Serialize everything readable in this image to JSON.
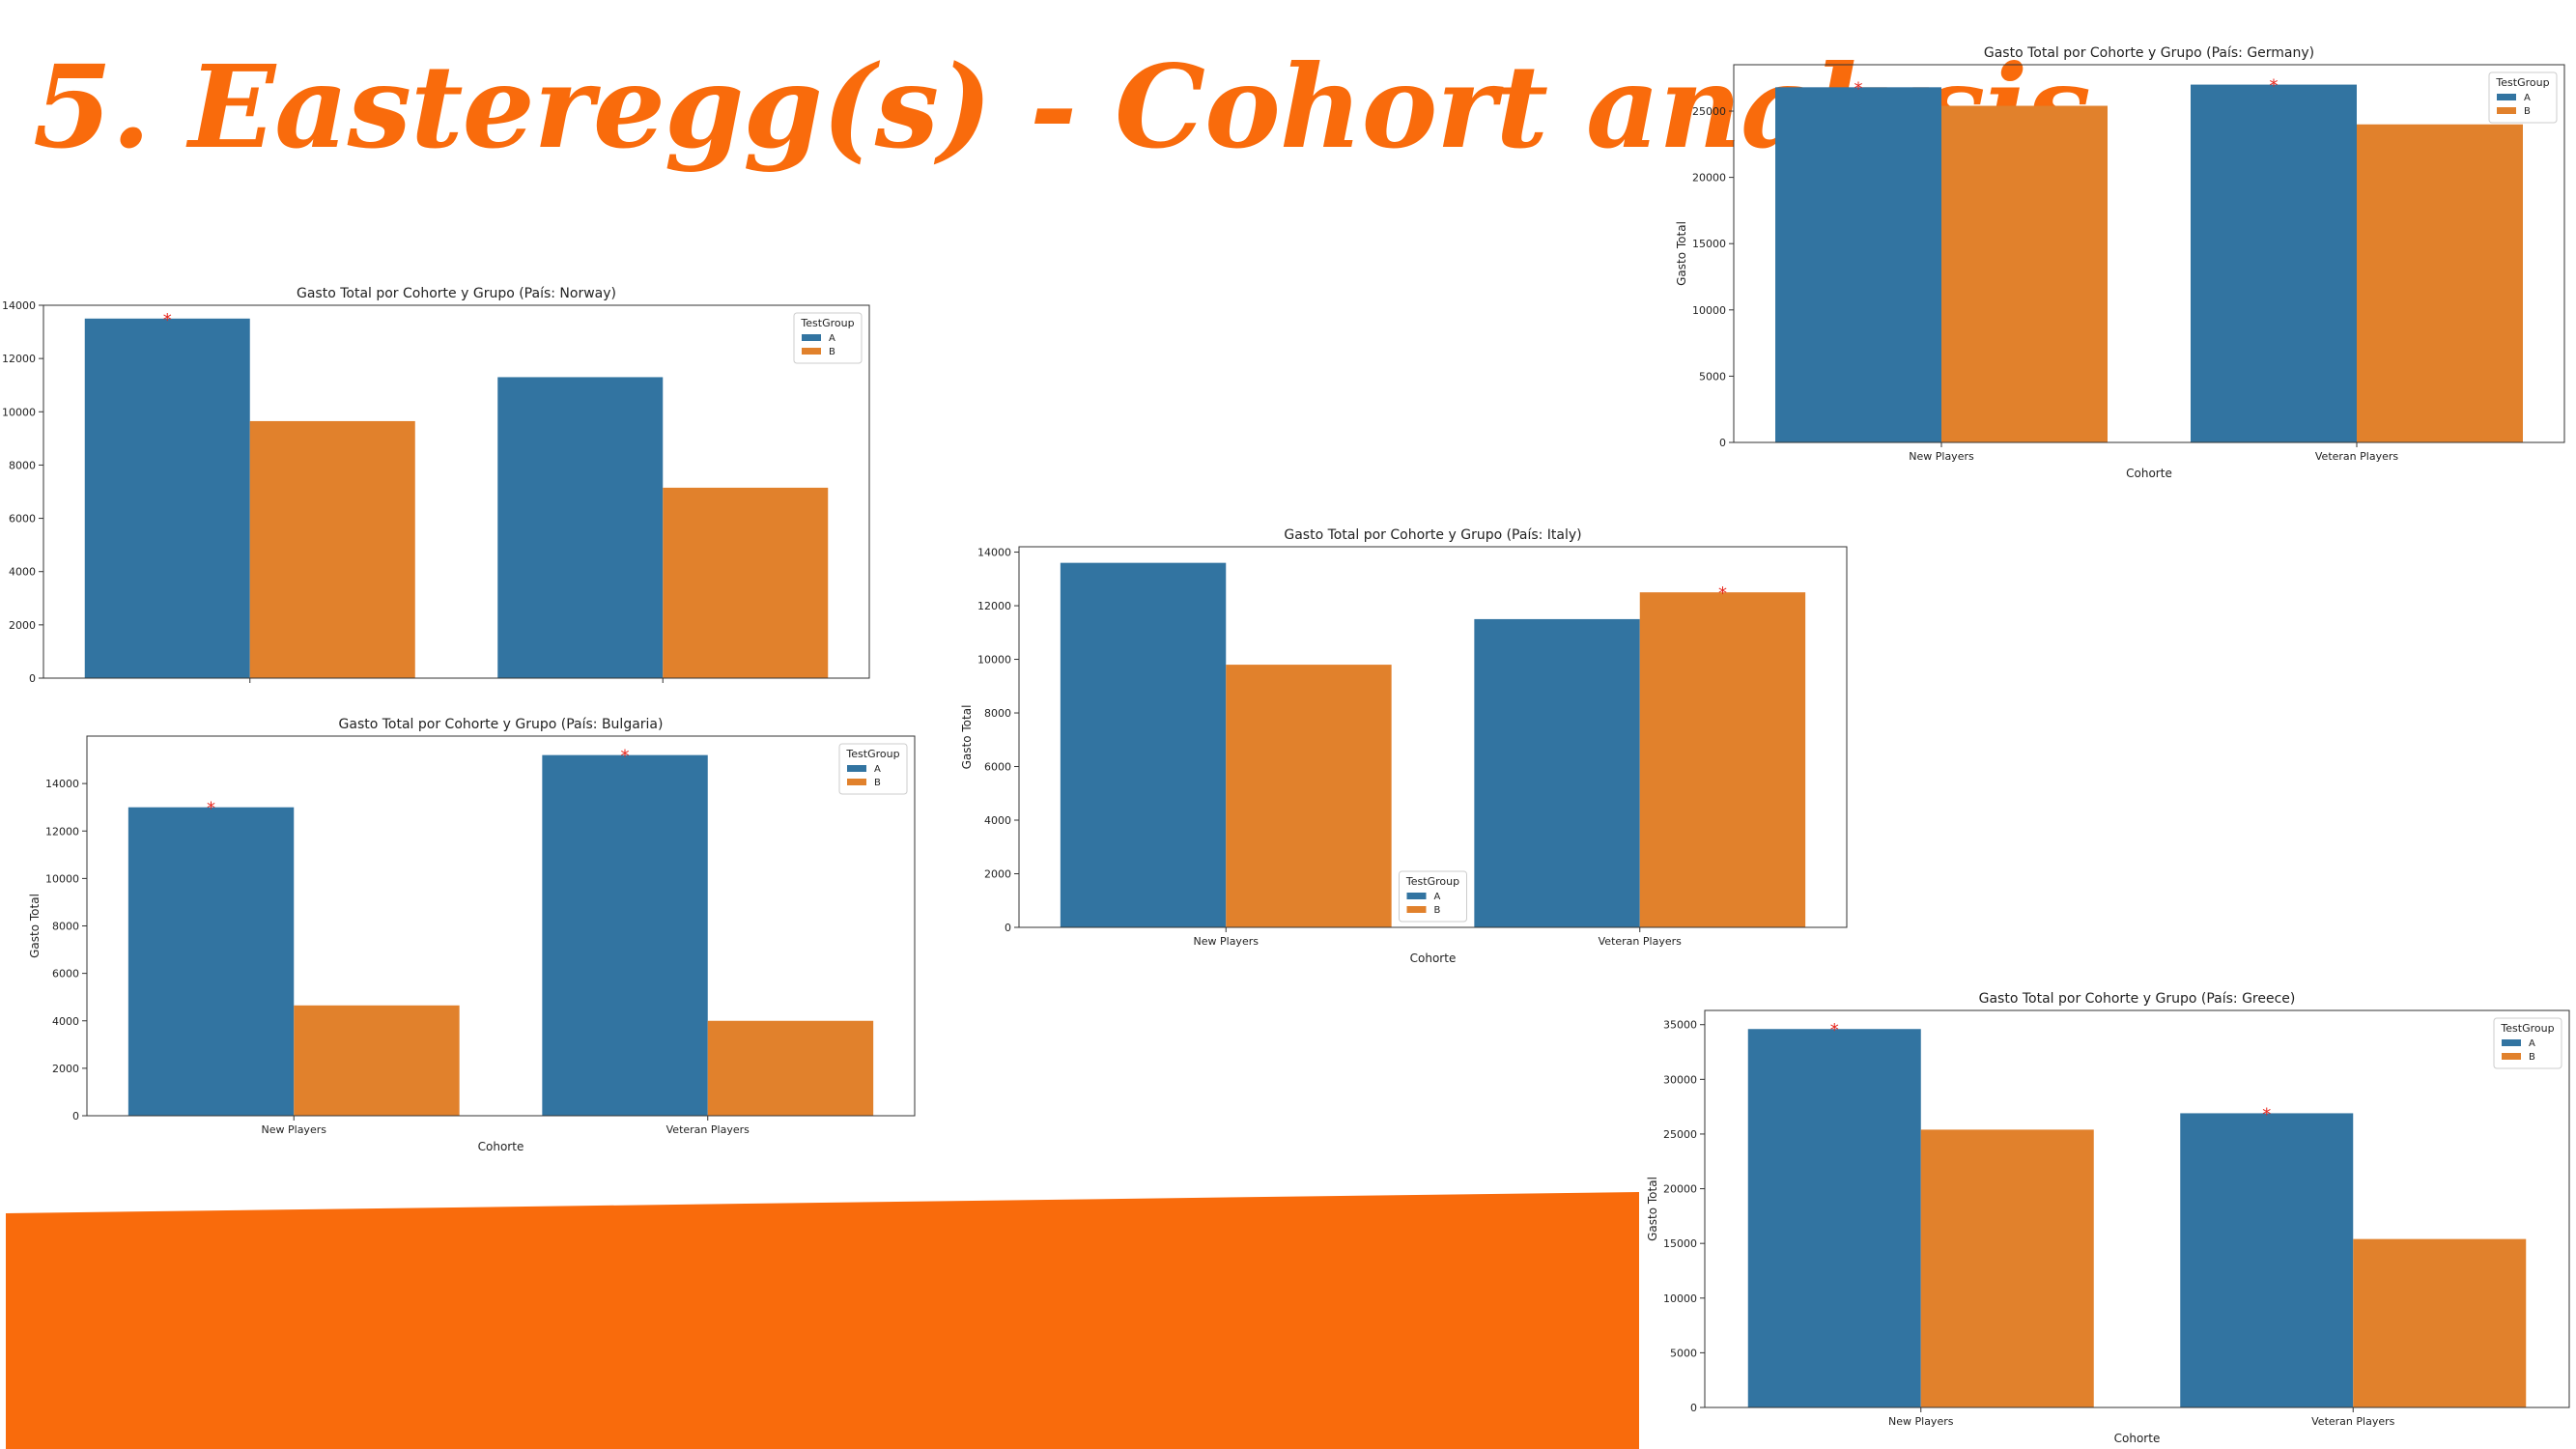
{
  "slide": {
    "title": "5. Easteregg(s) - Cohort analysis",
    "accent_color": "#f96b0c"
  },
  "colors": {
    "A": "#3274a1",
    "B": "#e1812c",
    "significance": "#e8261c"
  },
  "chart_data": [
    {
      "id": "norway",
      "type": "bar",
      "title": "Gasto Total por Cohorte y Grupo (País: Norway)",
      "xlabel": "",
      "ylabel": "",
      "categories": [
        "",
        ""
      ],
      "series": [
        {
          "name": "A",
          "values": [
            13500,
            11300
          ]
        },
        {
          "name": "B",
          "values": [
            9650,
            7150
          ]
        }
      ],
      "ylim": [
        0,
        14000
      ],
      "yticks": [
        0,
        2000,
        4000,
        6000,
        8000,
        10000,
        12000,
        14000
      ],
      "significance": [
        {
          "series": "A",
          "category": 0
        }
      ],
      "legend": {
        "title": "TestGroup",
        "entries": [
          "A",
          "B"
        ],
        "placement": "top-right"
      },
      "grid": false
    },
    {
      "id": "bulgaria",
      "type": "bar",
      "title": "Gasto Total por Cohorte y Grupo (País: Bulgaria)",
      "xlabel": "Cohorte",
      "ylabel": "Gasto Total",
      "categories": [
        "New Players",
        "Veteran Players"
      ],
      "series": [
        {
          "name": "A",
          "values": [
            13000,
            15200
          ]
        },
        {
          "name": "B",
          "values": [
            4650,
            4000
          ]
        }
      ],
      "ylim": [
        0,
        16000
      ],
      "yticks": [
        0,
        2000,
        4000,
        6000,
        8000,
        10000,
        12000,
        14000
      ],
      "significance": [
        {
          "series": "A",
          "category": 0
        },
        {
          "series": "A",
          "category": 1
        }
      ],
      "legend": {
        "title": "TestGroup",
        "entries": [
          "A",
          "B"
        ],
        "placement": "top-right"
      },
      "grid": false
    },
    {
      "id": "italy",
      "type": "bar",
      "title": "Gasto Total por Cohorte y Grupo (País: Italy)",
      "xlabel": "Cohorte",
      "ylabel": "Gasto Total",
      "categories": [
        "New Players",
        "Veteran Players"
      ],
      "series": [
        {
          "name": "A",
          "values": [
            13600,
            11500
          ]
        },
        {
          "name": "B",
          "values": [
            9800,
            12500
          ]
        }
      ],
      "ylim": [
        0,
        14200
      ],
      "yticks": [
        0,
        2000,
        4000,
        6000,
        8000,
        10000,
        12000,
        14000
      ],
      "significance": [
        {
          "series": "B",
          "category": 1
        }
      ],
      "legend": {
        "title": "TestGroup",
        "entries": [
          "A",
          "B"
        ],
        "placement": "lower-center"
      },
      "grid": false
    },
    {
      "id": "germany",
      "type": "bar",
      "title": "Gasto Total por Cohorte y Grupo (País: Germany)",
      "xlabel": "Cohorte",
      "ylabel": "Gasto Total",
      "categories": [
        "New Players",
        "Veteran Players"
      ],
      "series": [
        {
          "name": "A",
          "values": [
            26800,
            27000
          ]
        },
        {
          "name": "B",
          "values": [
            25400,
            24000
          ]
        }
      ],
      "ylim": [
        0,
        28500
      ],
      "yticks": [
        0,
        5000,
        10000,
        15000,
        20000,
        25000
      ],
      "significance": [
        {
          "series": "A",
          "category": 0
        },
        {
          "series": "A",
          "category": 1
        }
      ],
      "legend": {
        "title": "TestGroup",
        "entries": [
          "A",
          "B"
        ],
        "placement": "top-right"
      },
      "grid": false
    },
    {
      "id": "greece",
      "type": "bar",
      "title": "Gasto Total por Cohorte y Grupo (País: Greece)",
      "xlabel": "Cohorte",
      "ylabel": "Gasto Total",
      "categories": [
        "New Players",
        "Veteran Players"
      ],
      "series": [
        {
          "name": "A",
          "values": [
            34600,
            26900
          ]
        },
        {
          "name": "B",
          "values": [
            25400,
            15400
          ]
        }
      ],
      "ylim": [
        0,
        36300
      ],
      "yticks": [
        0,
        5000,
        10000,
        15000,
        20000,
        25000,
        30000,
        35000
      ],
      "significance": [
        {
          "series": "A",
          "category": 0
        },
        {
          "series": "A",
          "category": 1
        }
      ],
      "legend": {
        "title": "TestGroup",
        "entries": [
          "A",
          "B"
        ],
        "placement": "top-right"
      },
      "grid": false
    }
  ]
}
